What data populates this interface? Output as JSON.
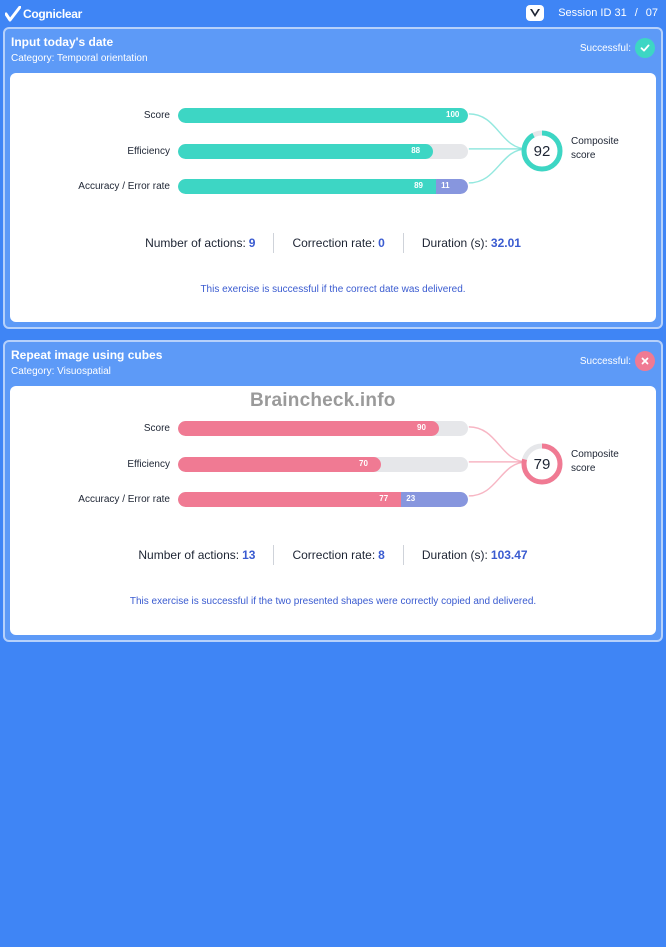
{
  "app": {
    "name": "Cogniclear",
    "session_label": "Session ID 31",
    "separator": "/",
    "session_page": "07"
  },
  "watermark": "Braincheck.info",
  "exercises": [
    {
      "title": "Input today's date",
      "category": "Category: Temporal orientation",
      "status_label": "Successful:",
      "success": true,
      "color": "#3dd6c4",
      "metrics": [
        {
          "label": "Score",
          "value": 100
        },
        {
          "label": "Efficiency",
          "value": 88
        },
        {
          "label": "Accuracy / Error rate",
          "value": 89,
          "error": 11
        }
      ],
      "composite": {
        "value": 92,
        "label_line1": "Composite",
        "label_line2": "score"
      },
      "stats": [
        {
          "label": "Number of actions:",
          "value": "9"
        },
        {
          "label": "Correction rate:",
          "value": "0"
        },
        {
          "label": "Duration (s):",
          "value": "32.01"
        }
      ],
      "rule": "This exercise is successful if the correct date was delivered."
    },
    {
      "title": "Repeat image using cubes",
      "category": "Category: Visuospatial",
      "status_label": "Successful:",
      "success": false,
      "color": "#f07a93",
      "metrics": [
        {
          "label": "Score",
          "value": 90
        },
        {
          "label": "Efficiency",
          "value": 70
        },
        {
          "label": "Accuracy / Error rate",
          "value": 77,
          "error": 23
        }
      ],
      "composite": {
        "value": 79,
        "label_line1": "Composite",
        "label_line2": "score"
      },
      "stats": [
        {
          "label": "Number of actions:",
          "value": "13"
        },
        {
          "label": "Correction rate:",
          "value": "8"
        },
        {
          "label": "Duration (s):",
          "value": "103.47"
        }
      ],
      "rule": "This exercise is successful if the two presented shapes were correctly copied and delivered."
    }
  ]
}
